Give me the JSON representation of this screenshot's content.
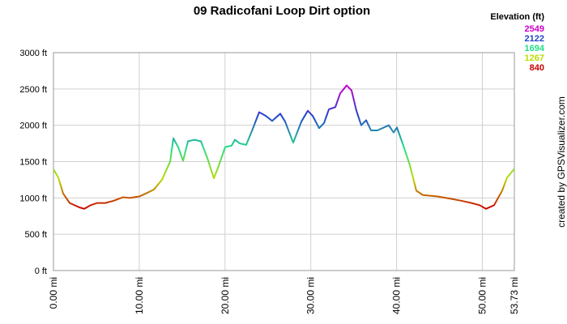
{
  "chart_data": {
    "type": "line",
    "title": "09 Radicofani Loop Dirt option",
    "credit": "created by GPSVisualizer.com",
    "legend": {
      "title": "Elevation (ft)",
      "entries": [
        {
          "value": 2549,
          "color": "#cc00cc"
        },
        {
          "value": 2122,
          "color": "#2244cc"
        },
        {
          "value": 1694,
          "color": "#22dd88"
        },
        {
          "value": 1267,
          "color": "#bbdd00"
        },
        {
          "value": 840,
          "color": "#cc0000"
        }
      ]
    },
    "grid": true,
    "xlim": [
      0,
      53.73
    ],
    "ylim": [
      0,
      3000
    ],
    "xticks": [
      {
        "value": 0,
        "label": "0.00 mi"
      },
      {
        "value": 10,
        "label": "10.00 mi"
      },
      {
        "value": 20,
        "label": "20.00 mi"
      },
      {
        "value": 30,
        "label": "30.00 mi"
      },
      {
        "value": 40,
        "label": "40.00 mi"
      },
      {
        "value": 50,
        "label": "50.00 mi"
      },
      {
        "value": 53.73,
        "label": "53.73 mi"
      }
    ],
    "yticks": [
      {
        "value": 0,
        "label": "0 ft"
      },
      {
        "value": 500,
        "label": "500 ft"
      },
      {
        "value": 1000,
        "label": "1000 ft"
      },
      {
        "value": 1500,
        "label": "1500 ft"
      },
      {
        "value": 2000,
        "label": "2000 ft"
      },
      {
        "value": 2500,
        "label": "2500 ft"
      },
      {
        "value": 3000,
        "label": "3000 ft"
      }
    ],
    "x": [
      0,
      0.57,
      1.13,
      1.89,
      3.02,
      3.59,
      4.34,
      5.1,
      6.04,
      6.99,
      8.12,
      8.88,
      10.0,
      10.76,
      11.71,
      12.65,
      13.6,
      13.98,
      14.54,
      15.11,
      15.68,
      16.43,
      17.19,
      17.94,
      18.7,
      19.26,
      20.02,
      20.77,
      21.15,
      21.72,
      22.47,
      23.23,
      23.98,
      24.74,
      25.5,
      26.44,
      27.01,
      27.95,
      28.9,
      29.65,
      30.22,
      30.97,
      31.54,
      32.11,
      32.86,
      33.43,
      34.18,
      34.75,
      35.32,
      35.88,
      36.45,
      37.02,
      37.77,
      38.53,
      39.09,
      39.66,
      40.04,
      40.79,
      41.55,
      42.3,
      43.06,
      44.76,
      46.27,
      47.59,
      48.73,
      49.67,
      50.42,
      51.37,
      52.31,
      52.88,
      53.73
    ],
    "series": [
      {
        "name": "Elevation",
        "values": [
          1394,
          1280,
          1060,
          930,
          870,
          850,
          900,
          930,
          930,
          960,
          1010,
          1000,
          1020,
          1060,
          1115,
          1250,
          1500,
          1820,
          1700,
          1510,
          1780,
          1800,
          1780,
          1550,
          1270,
          1440,
          1700,
          1720,
          1800,
          1750,
          1730,
          1950,
          2180,
          2130,
          2060,
          2160,
          2050,
          1760,
          2050,
          2200,
          2130,
          1960,
          2030,
          2220,
          2250,
          2440,
          2549,
          2480,
          2200,
          2000,
          2070,
          1930,
          1930,
          1970,
          2000,
          1900,
          1970,
          1720,
          1450,
          1100,
          1040,
          1020,
          990,
          960,
          930,
          900,
          850,
          900,
          1100,
          1280,
          1400
        ]
      }
    ]
  }
}
